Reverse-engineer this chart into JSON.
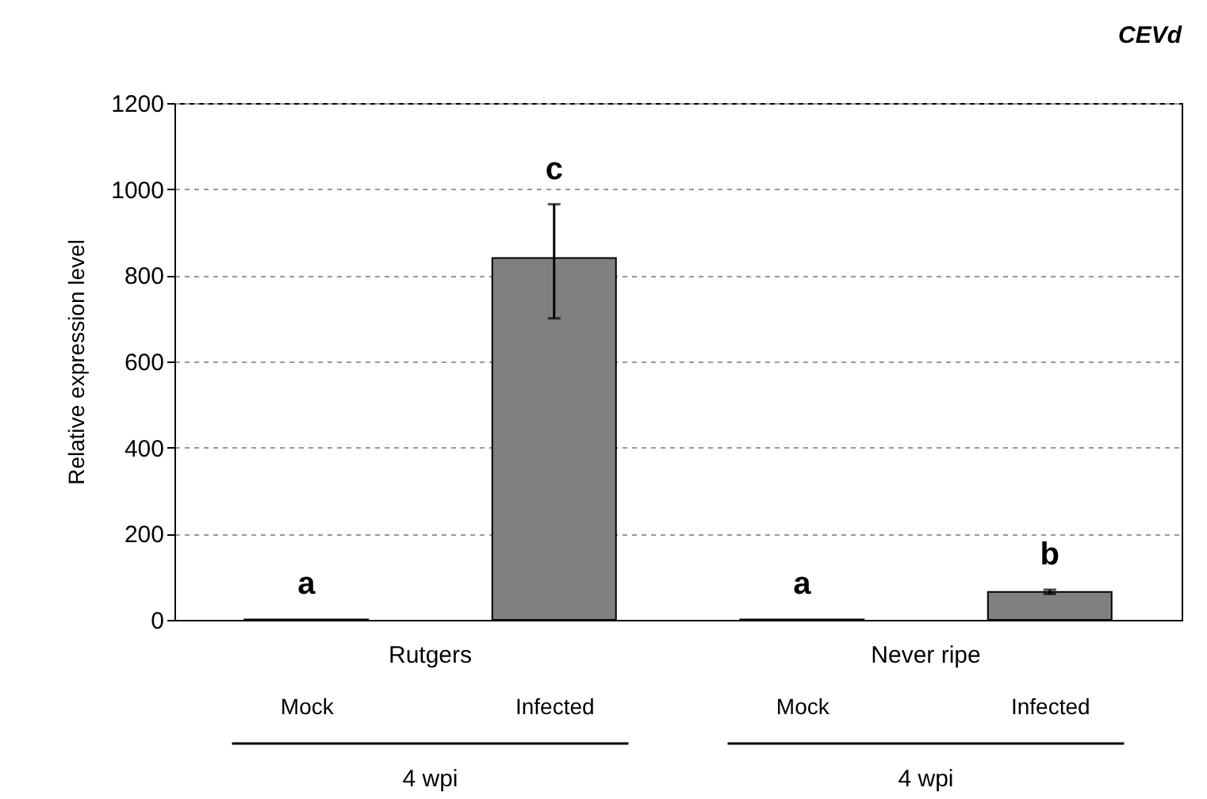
{
  "chart_data": {
    "type": "bar",
    "title": "CEVd",
    "ylabel": "Relative expression level",
    "categories": [
      "Mock",
      "Infected",
      "Mock",
      "Infected"
    ],
    "values": [
      1,
      840,
      1,
      65
    ],
    "errors": [
      null,
      [
        700,
        965
      ],
      null,
      [
        60,
        70
      ]
    ],
    "value_labels": [
      "a",
      "c",
      "a",
      "b"
    ],
    "color": "#808080",
    "ylim": [
      0,
      1200
    ],
    "yticks": [
      0,
      200,
      400,
      600,
      800,
      1000,
      1200
    ],
    "grid": "y",
    "annotations": [
      "Rutgers",
      "Never ripe",
      "4 wpi",
      "4 wpi"
    ]
  }
}
